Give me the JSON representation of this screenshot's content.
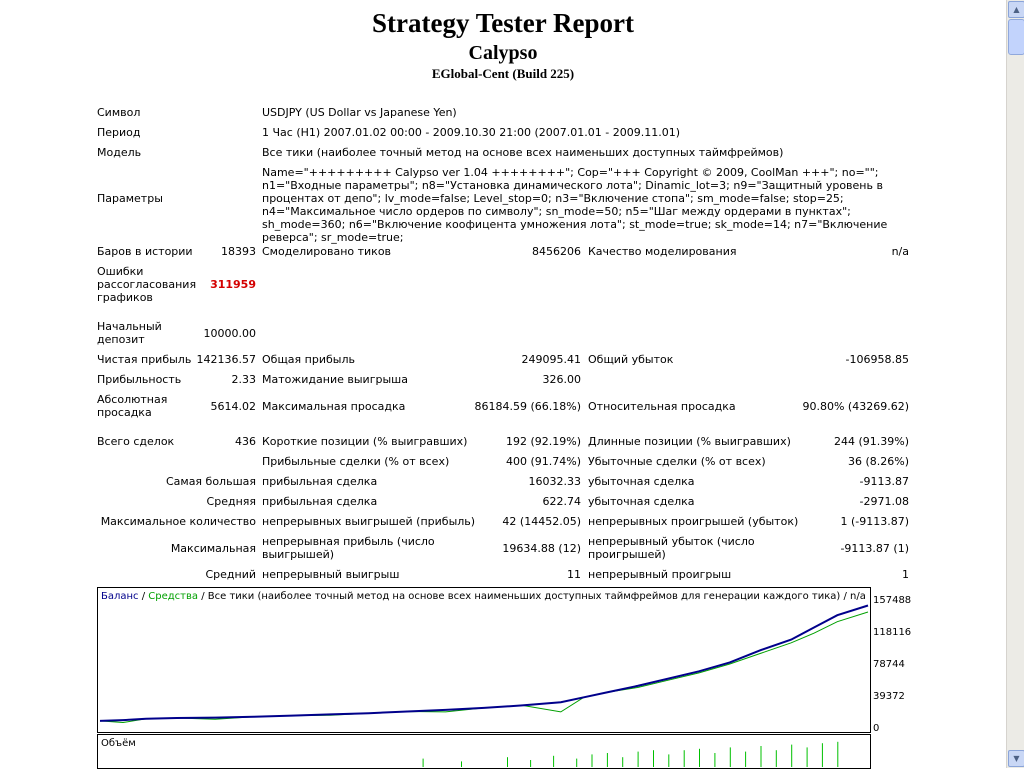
{
  "report": {
    "title": "Strategy Tester Report",
    "expert": "Calypso",
    "server": "EGlobal-Cent (Build 225)"
  },
  "info": {
    "symbol_label": "Символ",
    "symbol_value": "USDJPY (US Dollar vs Japanese Yen)",
    "period_label": "Период",
    "period_value": "1 Час (H1) 2007.01.02 00:00 - 2009.10.30 21:00 (2007.01.01 - 2009.11.01)",
    "model_label": "Модель",
    "model_value": "Все тики (наиболее точный метод на основе всех наименьших доступных таймфреймов)",
    "params_label": "Параметры",
    "params_value": "Name=\"+++++++++ Calypso ver 1.04 ++++++++\"; Cop=\"+++ Copyright © 2009, CoolMan +++\"; no=\"\"; n1=\"Входные параметры\"; n8=\"Установка динамического лота\"; Dinamic_lot=3; n9=\"Защитный уровень в процентах от депо\"; lv_mode=false; Level_stop=0; n3=\"Включение стопа\"; sm_mode=false; stop=25; n4=\"Максимальное число ордеров по символу\"; sn_mode=50; n5=\"Шаг между ордерами в пунктах\"; sh_mode=360; n6=\"Включение коофицента умножения лота\"; st_mode=true; sk_mode=14; n7=\"Включение реверса\"; sr_mode=true;"
  },
  "stats": {
    "bars_label": "Баров в истории",
    "bars_value": "18393",
    "ticks_label": "Смоделировано тиков",
    "ticks_value": "8456206",
    "quality_label": "Качество моделирования",
    "quality_value": "n/a",
    "errors_label_1": "Ошибки",
    "errors_label_2": "рассогласования",
    "errors_label_3": "графиков",
    "errors_value": "311959",
    "deposit_label_1": "Начальный",
    "deposit_label_2": "депозит",
    "deposit_value": "10000.00",
    "net_label": "Чистая прибыль",
    "net_value": "142136.57",
    "gross_profit_label": "Общая прибыль",
    "gross_profit_value": "249095.41",
    "gross_loss_label": "Общий убыток",
    "gross_loss_value": "-106958.85",
    "pf_label": "Прибыльность",
    "pf_value": "2.33",
    "payoff_label": "Матожидание выигрыша",
    "payoff_value": "326.00",
    "abs_dd_label_1": "Абсолютная",
    "abs_dd_label_2": "просадка",
    "abs_dd_value": "5614.02",
    "max_dd_label": "Максимальная просадка",
    "max_dd_value": "86184.59 (66.18%)",
    "rel_dd_label": "Относительная просадка",
    "rel_dd_value": "90.80% (43269.62)",
    "total_label": "Всего сделок",
    "total_value": "436",
    "short_label": "Короткие позиции (% выигравших)",
    "short_value": "192 (92.19%)",
    "long_label": "Длинные позиции (% выигравших)",
    "long_value": "244 (91.39%)",
    "profit_trades_label": "Прибыльные сделки (% от всех)",
    "profit_trades_value": "400 (91.74%)",
    "loss_trades_label": "Убыточные сделки (% от всех)",
    "loss_trades_value": "36 (8.26%)",
    "largest_label": "Самая большая",
    "largest_profit_label": "прибыльная сделка",
    "largest_profit_value": "16032.33",
    "largest_loss_label": "убыточная сделка",
    "largest_loss_value": "-9113.87",
    "average_label": "Средняя",
    "average_profit_label": "прибыльная сделка",
    "average_profit_value": "622.74",
    "average_loss_label": "убыточная сделка",
    "average_loss_value": "-2971.08",
    "maxcount_label": "Максимальное количество",
    "maxcons_wins_label": "непрерывных выигрышей (прибыль)",
    "maxcons_wins_value": "42 (14452.05)",
    "maxcons_losses_label": "непрерывных проигрышей (убыток)",
    "maxcons_losses_value": "1 (-9113.87)",
    "maximal_label": "Максимальная",
    "maxcons_profit_label_1": "непрерывная прибыль (число",
    "maxcons_profit_label_2": "выигрышей)",
    "maxcons_profit_value": "19634.88 (12)",
    "maxcons_loss_label_1": "непрерывный убыток (число",
    "maxcons_loss_label_2": "проигрышей)",
    "maxcons_loss_value": "-9113.87 (1)",
    "avgcons_label": "Средний",
    "avgcons_wins_label": "непрерывный выигрыш",
    "avgcons_wins_value": "11",
    "avgcons_losses_label": "непрерывный проигрыш",
    "avgcons_losses_value": "1"
  },
  "chart": {
    "legend_balance": "Баланс",
    "legend_sep1": " / ",
    "legend_equity": "Средства",
    "legend_rest": " / Все тики (наиболее точный метод на основе всех наименьших доступных таймфреймов для генерации каждого тика) / n/a",
    "volume_label": "Объём",
    "colors": {
      "balance": "#00008b",
      "equity": "#00a000",
      "volume": "#00c000"
    }
  },
  "chart_data": {
    "type": "line",
    "y_ticks": [
      "157488",
      "118116",
      "78744",
      "39372",
      "0"
    ],
    "ylim": [
      0,
      157488
    ],
    "x": [
      0,
      0.03,
      0.06,
      0.1,
      0.15,
      0.2,
      0.25,
      0.3,
      0.35,
      0.4,
      0.45,
      0.5,
      0.55,
      0.6,
      0.63,
      0.66,
      0.7,
      0.74,
      0.78,
      0.82,
      0.86,
      0.9,
      0.93,
      0.96,
      1.0
    ],
    "series": [
      {
        "name": "Баланс",
        "values": [
          10000,
          11000,
          12500,
          13500,
          14000,
          15000,
          16500,
          18000,
          19500,
          21500,
          23500,
          26000,
          29000,
          33000,
          39000,
          45000,
          53000,
          62000,
          71000,
          82000,
          97000,
          110000,
          125000,
          140000,
          152000
        ]
      },
      {
        "name": "Средства",
        "values": [
          10000,
          8000,
          12500,
          13500,
          12000,
          15000,
          16500,
          17000,
          19500,
          21500,
          21000,
          26000,
          29000,
          21000,
          39000,
          45000,
          51000,
          60000,
          69000,
          80000,
          93000,
          106000,
          118000,
          132000,
          144000
        ]
      }
    ]
  },
  "volume_bars": [
    0.42,
    0.47,
    0.53,
    0.56,
    0.59,
    0.62,
    0.64,
    0.66,
    0.68,
    0.7,
    0.72,
    0.74,
    0.76,
    0.78,
    0.8,
    0.82,
    0.84,
    0.86,
    0.88,
    0.9,
    0.92,
    0.94,
    0.96
  ],
  "volume_heights": [
    0.3,
    0.2,
    0.35,
    0.25,
    0.4,
    0.3,
    0.45,
    0.5,
    0.35,
    0.55,
    0.6,
    0.45,
    0.6,
    0.65,
    0.5,
    0.7,
    0.55,
    0.75,
    0.6,
    0.8,
    0.7,
    0.85,
    0.9
  ]
}
